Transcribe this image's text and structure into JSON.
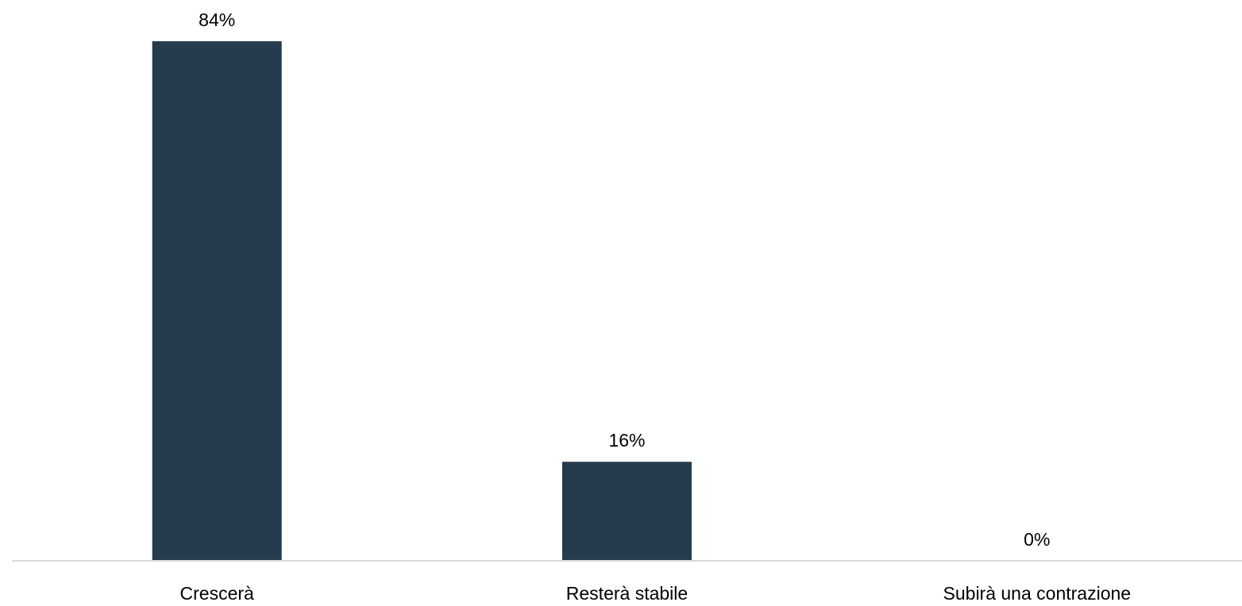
{
  "chart_data": {
    "type": "bar",
    "categories": [
      "Crescerà",
      "Resterà stabile",
      "Subirà una contrazione"
    ],
    "values": [
      84,
      16,
      0
    ],
    "data_labels": [
      "84%",
      "16%",
      "0%"
    ],
    "title": "",
    "xlabel": "",
    "ylabel": "",
    "ylim": [
      0,
      84
    ],
    "grid": false,
    "legend": "none",
    "colors": {
      "bar": "#253c4d",
      "axis": "#d9d9d9",
      "text": "#000000"
    }
  }
}
